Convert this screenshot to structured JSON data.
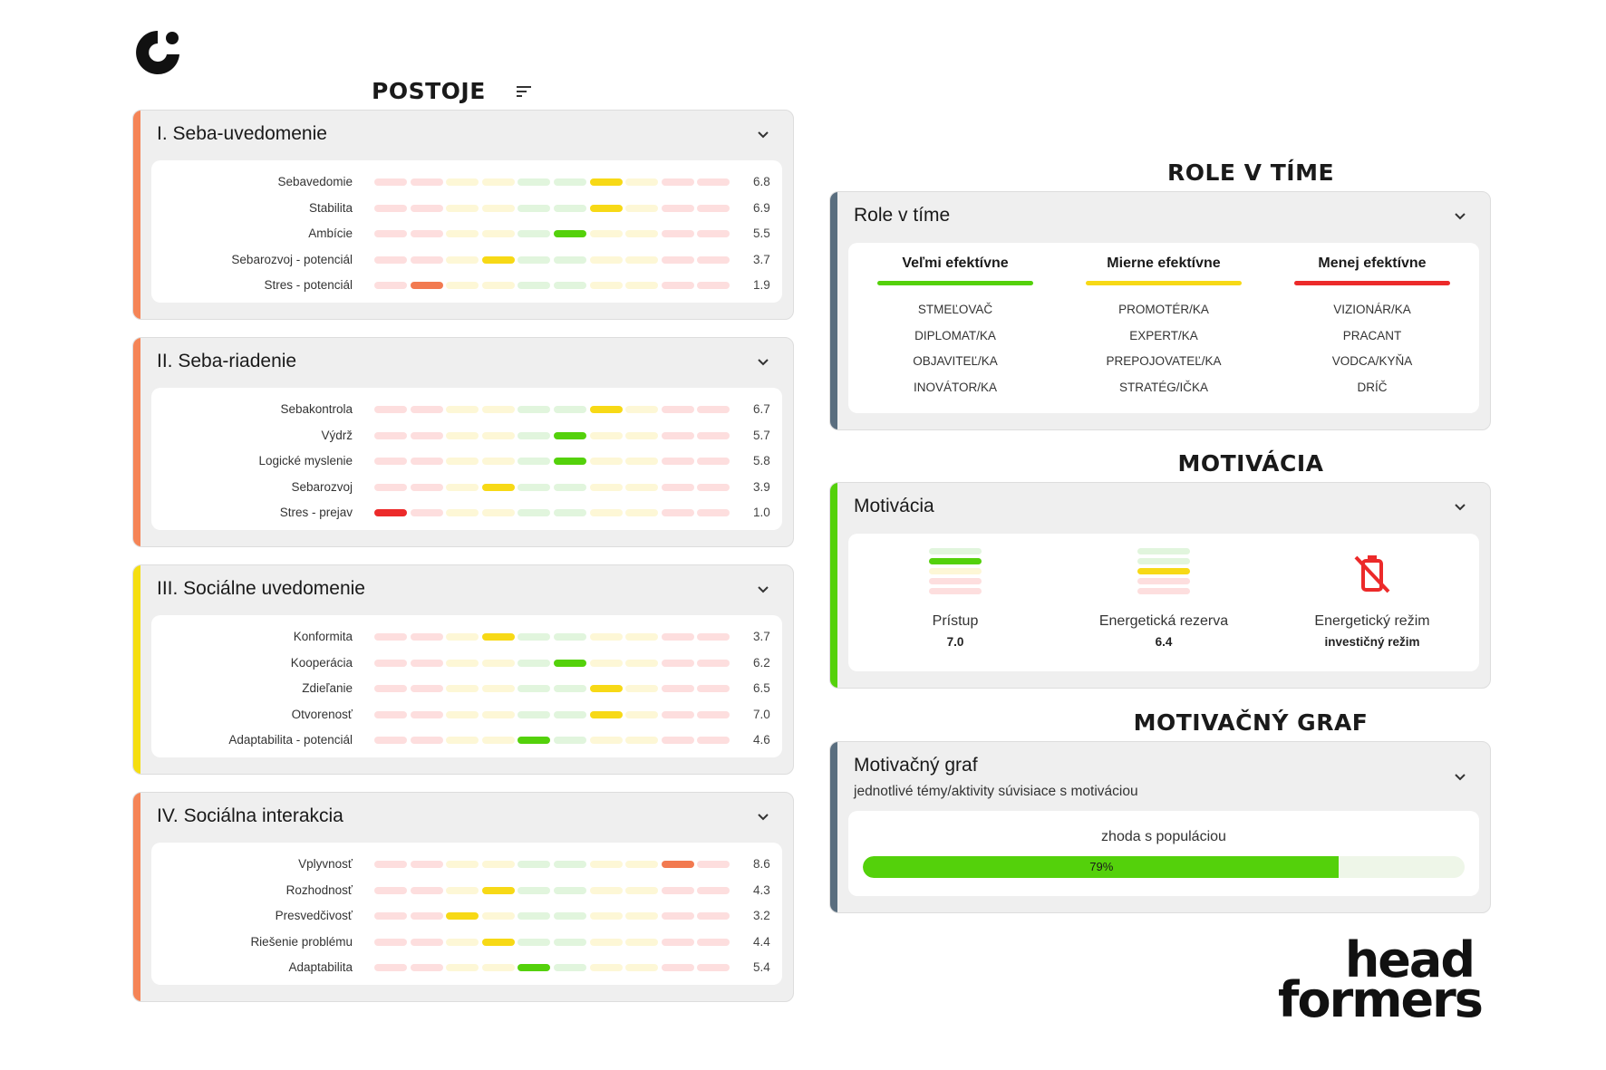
{
  "colors": {
    "accent_orange": "#f58456",
    "accent_yellow": "#f5de10",
    "accent_slate": "#5a6e7f",
    "accent_green": "#54d10b",
    "green": "#54d10b",
    "yellow": "#f7d916",
    "orange": "#f27a50",
    "red": "#ec2a2a",
    "seg_red_light": "#fddede",
    "seg_yellow_light": "#fdf7d6",
    "seg_green_light": "#e1f5dd"
  },
  "postoje": {
    "title": "POSTOJE",
    "sort_icon": "sort-icon",
    "cards": [
      {
        "title": "I. Seba-uvedomenie",
        "accent": "orange",
        "rows": [
          {
            "label": "Sebavedomie",
            "value": "6.8",
            "position": 7,
            "color": "yellow"
          },
          {
            "label": "Stabilita",
            "value": "6.9",
            "position": 7,
            "color": "yellow"
          },
          {
            "label": "Ambície",
            "value": "5.5",
            "position": 6,
            "color": "green"
          },
          {
            "label": "Sebarozvoj - potenciál",
            "value": "3.7",
            "position": 4,
            "color": "yellow"
          },
          {
            "label": "Stres - potenciál",
            "value": "1.9",
            "position": 2,
            "color": "orange"
          }
        ]
      },
      {
        "title": "II. Seba-riadenie",
        "accent": "orange",
        "rows": [
          {
            "label": "Sebakontrola",
            "value": "6.7",
            "position": 7,
            "color": "yellow"
          },
          {
            "label": "Výdrž",
            "value": "5.7",
            "position": 6,
            "color": "green"
          },
          {
            "label": "Logické myslenie",
            "value": "5.8",
            "position": 6,
            "color": "green"
          },
          {
            "label": "Sebarozvoj",
            "value": "3.9",
            "position": 4,
            "color": "yellow"
          },
          {
            "label": "Stres - prejav",
            "value": "1.0",
            "position": 1,
            "color": "red"
          }
        ]
      },
      {
        "title": "III. Sociálne uvedomenie",
        "accent": "yellow",
        "rows": [
          {
            "label": "Konformita",
            "value": "3.7",
            "position": 4,
            "color": "yellow"
          },
          {
            "label": "Kooperácia",
            "value": "6.2",
            "position": 6,
            "color": "green"
          },
          {
            "label": "Zdieľanie",
            "value": "6.5",
            "position": 7,
            "color": "yellow"
          },
          {
            "label": "Otvorenosť",
            "value": "7.0",
            "position": 7,
            "color": "yellow"
          },
          {
            "label": "Adaptabilita - potenciál",
            "value": "4.6",
            "position": 5,
            "color": "green"
          }
        ]
      },
      {
        "title": "IV. Sociálna interakcia",
        "accent": "orange",
        "rows": [
          {
            "label": "Vplyvnosť",
            "value": "8.6",
            "position": 9,
            "color": "orange"
          },
          {
            "label": "Rozhodnosť",
            "value": "4.3",
            "position": 4,
            "color": "yellow"
          },
          {
            "label": "Presvedčivosť",
            "value": "3.2",
            "position": 3,
            "color": "yellow"
          },
          {
            "label": "Riešenie problému",
            "value": "4.4",
            "position": 4,
            "color": "yellow"
          },
          {
            "label": "Adaptabilita",
            "value": "5.4",
            "position": 5,
            "color": "green"
          }
        ]
      }
    ]
  },
  "roles": {
    "section_title": "ROLE V TÍME",
    "card_title": "Role v tíme",
    "columns": [
      {
        "heading": "Veľmi efektívne",
        "color": "green",
        "items": [
          "STMEĽOVAČ",
          "DIPLOMAT/KA",
          "OBJAVITEĽ/KA",
          "INOVÁTOR/KA"
        ]
      },
      {
        "heading": "Mierne efektívne",
        "color": "yellow",
        "items": [
          "PROMOTÉR/KA",
          "EXPERT/KA",
          "PREPOJOVATEĽ/KA",
          "STRATÉG/IČKA"
        ]
      },
      {
        "heading": "Menej efektívne",
        "color": "red",
        "items": [
          "VIZIONÁR/KA",
          "PRACANT",
          "VODCA/KYŇA",
          "DRÍČ"
        ]
      }
    ]
  },
  "motivation": {
    "section_title": "MOTIVÁCIA",
    "card_title": "Motivácia",
    "items": [
      {
        "label": "Prístup",
        "value": "7.0",
        "icon": "level-stack-icon",
        "level": 4
      },
      {
        "label": "Energetická rezerva",
        "value": "6.4",
        "icon": "level-stack-icon",
        "level": 3
      },
      {
        "label": "Energetický režim",
        "value": "investičný režim",
        "icon": "battery-off-icon"
      }
    ]
  },
  "graph": {
    "section_title": "MOTIVAČNÝ GRAF",
    "card_title": "Motivačný graf",
    "subtitle": "jednotlivé témy/aktivity súvisiace s motiváciou",
    "bar_label": "zhoda s populáciou",
    "percent_label": "79%",
    "percent": 79
  },
  "brand": {
    "line1": "head",
    "line2": "formers"
  }
}
